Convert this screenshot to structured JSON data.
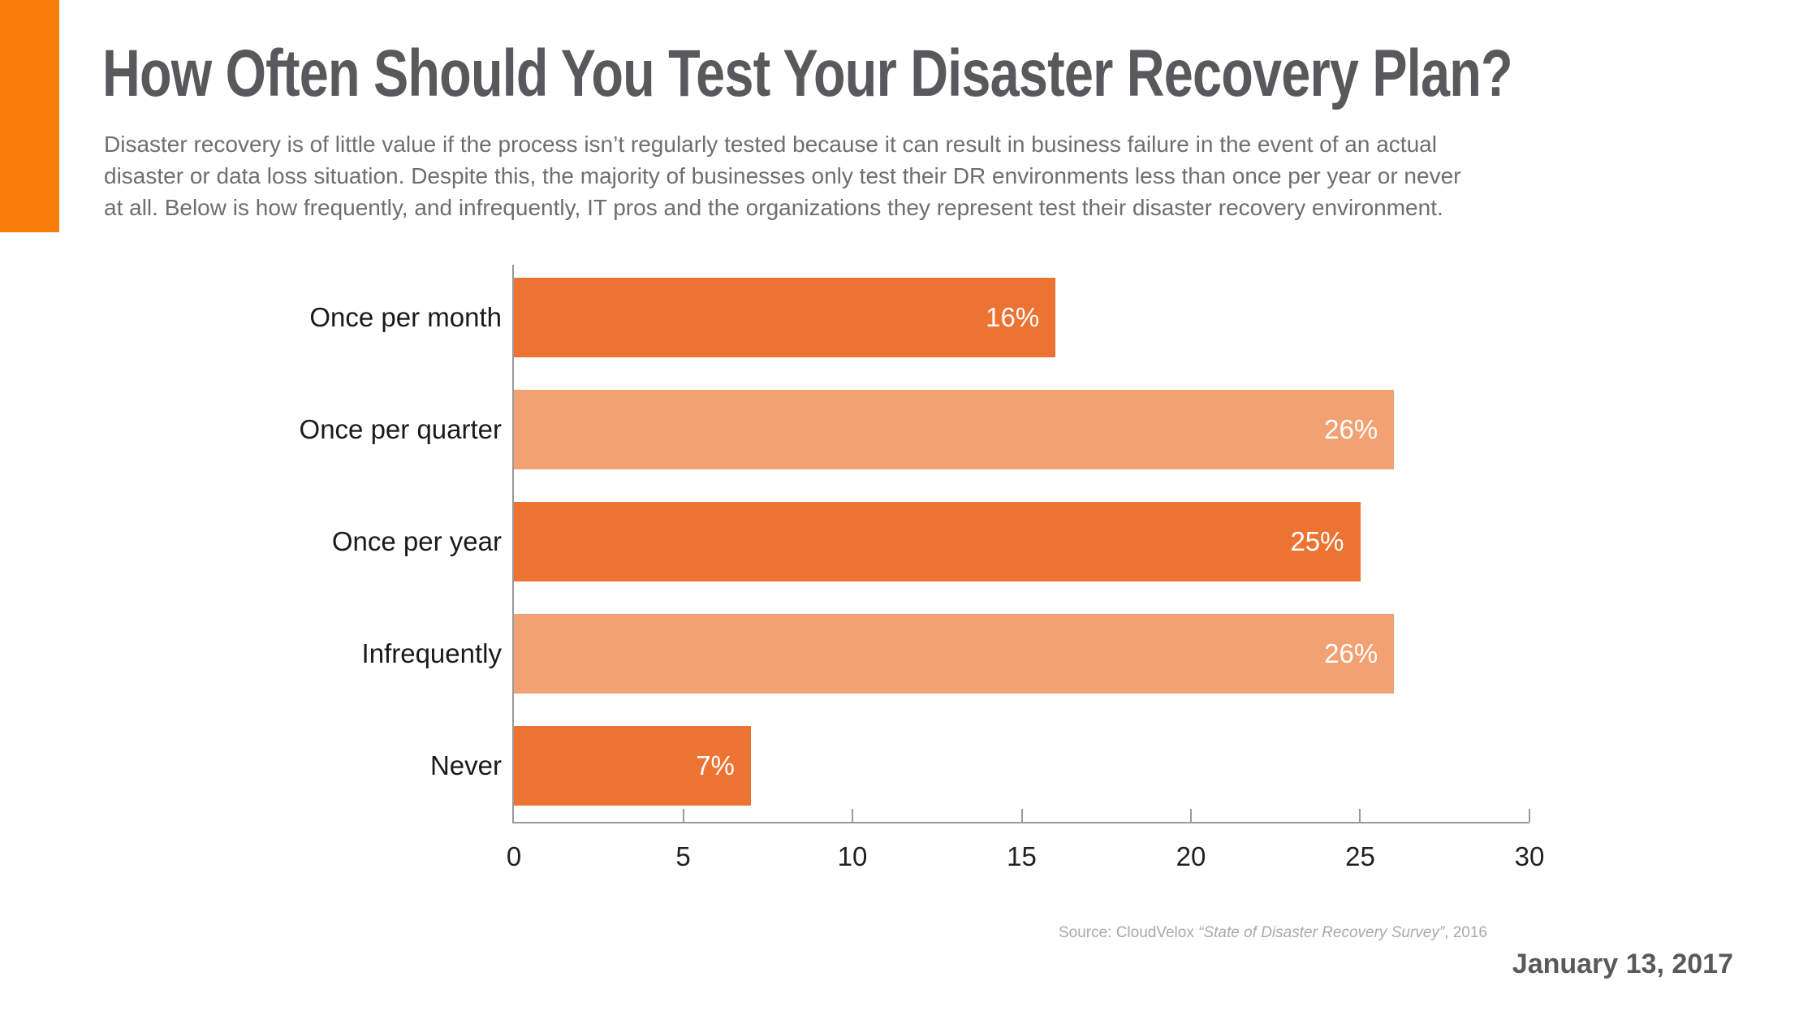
{
  "page": {
    "background": "#FFFFFF",
    "accent_color": "#F97D0B"
  },
  "header": {
    "title": "How Often Should You Test Your Disaster Recovery Plan?",
    "title_color": "#58595B",
    "description_color": "#6D6E71",
    "description_lines": [
      "Disaster recovery is of little value if the process isn’t regularly tested because it can result in business failure in the event of an actual",
      "disaster or data loss situation. Despite this, the majority of businesses only test their DR environments less than once per year or never",
      "at all. Below is how frequently, and infrequently, IT pros and the organizations they represent test their disaster recovery environment."
    ]
  },
  "chart_data": {
    "type": "bar",
    "orientation": "horizontal",
    "categories": [
      "Once per month",
      "Once per quarter",
      "Once per year",
      "Infrequently",
      "Never"
    ],
    "values": [
      16,
      26,
      25,
      26,
      7
    ],
    "value_labels": [
      "16%",
      "26%",
      "25%",
      "26%",
      "7%"
    ],
    "bar_colors": [
      "#ED7333",
      "#F2A172",
      "#ED7333",
      "#F2A172",
      "#ED7333"
    ],
    "value_label_color": "#FFFFFF",
    "xlim": [
      0,
      30
    ],
    "x_ticks": [
      0,
      5,
      10,
      15,
      20,
      25,
      30
    ],
    "xlabel": "",
    "ylabel": "",
    "grid": "off",
    "legend": "none",
    "axis_color": "#98999B",
    "category_label_color": "#1A1A1A",
    "tick_label_color": "#231F20"
  },
  "footer": {
    "source_prefix": "Source: CloudVelox ",
    "source_italic": "“State of Disaster Recovery Survey”",
    "source_suffix": ", 2016",
    "source_color": "#A7A9AC",
    "date": "January 13, 2017",
    "date_color": "#58595B"
  }
}
